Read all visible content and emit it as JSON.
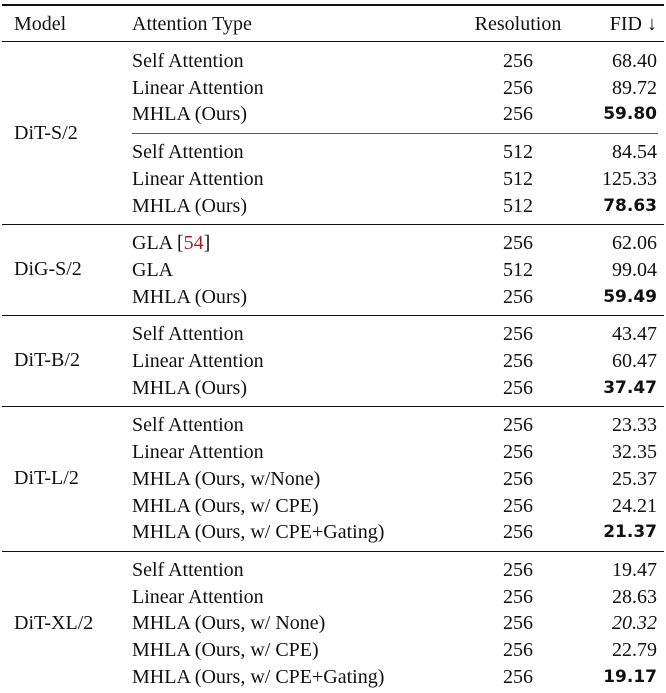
{
  "header": {
    "model": "Model",
    "attention": "Attention Type",
    "resolution": "Resolution",
    "fid": "FID ↓"
  },
  "cite_color": "#a3232b",
  "groups": [
    {
      "model": "DiT-S/2",
      "subgroups": [
        [
          {
            "attention": "Self Attention",
            "resolution": "256",
            "fid": "68.40",
            "style": "normal"
          },
          {
            "attention": "Linear Attention",
            "resolution": "256",
            "fid": "89.72",
            "style": "normal"
          },
          {
            "attention": "MHLA (Ours)",
            "resolution": "256",
            "fid": "59.80",
            "style": "bold"
          }
        ],
        [
          {
            "attention": "Self Attention",
            "resolution": "512",
            "fid": "84.54",
            "style": "normal"
          },
          {
            "attention": "Linear Attention",
            "resolution": "512",
            "fid": "125.33",
            "style": "normal"
          },
          {
            "attention": "MHLA (Ours)",
            "resolution": "512",
            "fid": "78.63",
            "style": "bold"
          }
        ]
      ]
    },
    {
      "model": "DiG-S/2",
      "subgroups": [
        [
          {
            "attention": "GLA [",
            "cite": "54",
            "cite_close": "]",
            "resolution": "256",
            "fid": "62.06",
            "style": "normal"
          },
          {
            "attention": "GLA",
            "resolution": "512",
            "fid": "99.04",
            "style": "normal"
          },
          {
            "attention": "MHLA (Ours)",
            "resolution": "256",
            "fid": "59.49",
            "style": "bold"
          }
        ]
      ]
    },
    {
      "model": "DiT-B/2",
      "subgroups": [
        [
          {
            "attention": "Self Attention",
            "resolution": "256",
            "fid": "43.47",
            "style": "normal"
          },
          {
            "attention": "Linear Attention",
            "resolution": "256",
            "fid": "60.47",
            "style": "normal"
          },
          {
            "attention": "MHLA (Ours)",
            "resolution": "256",
            "fid": "37.47",
            "style": "bold"
          }
        ]
      ]
    },
    {
      "model": "DiT-L/2",
      "subgroups": [
        [
          {
            "attention": "Self Attention",
            "resolution": "256",
            "fid": "23.33",
            "style": "normal"
          },
          {
            "attention": "Linear Attention",
            "resolution": "256",
            "fid": "32.35",
            "style": "normal"
          },
          {
            "attention": "MHLA (Ours, w/None)",
            "resolution": "256",
            "fid": "25.37",
            "style": "normal"
          },
          {
            "attention": "MHLA (Ours, w/ CPE)",
            "resolution": "256",
            "fid": "24.21",
            "style": "normal"
          },
          {
            "attention": "MHLA (Ours, w/ CPE+Gating)",
            "resolution": "256",
            "fid": "21.37",
            "style": "bold"
          }
        ]
      ]
    },
    {
      "model": "DiT-XL/2",
      "subgroups": [
        [
          {
            "attention": "Self Attention",
            "resolution": "256",
            "fid": "19.47",
            "style": "normal"
          },
          {
            "attention": "Linear Attention",
            "resolution": "256",
            "fid": "28.63",
            "style": "normal"
          },
          {
            "attention": "MHLA (Ours, w/ None)",
            "resolution": "256",
            "fid": "20.32",
            "style": "italic"
          },
          {
            "attention": "MHLA (Ours, w/ CPE)",
            "resolution": "256",
            "fid": "22.79",
            "style": "normal"
          },
          {
            "attention": "MHLA (Ours, w/ CPE+Gating)",
            "resolution": "256",
            "fid": "19.17",
            "style": "bold"
          }
        ]
      ]
    }
  ]
}
